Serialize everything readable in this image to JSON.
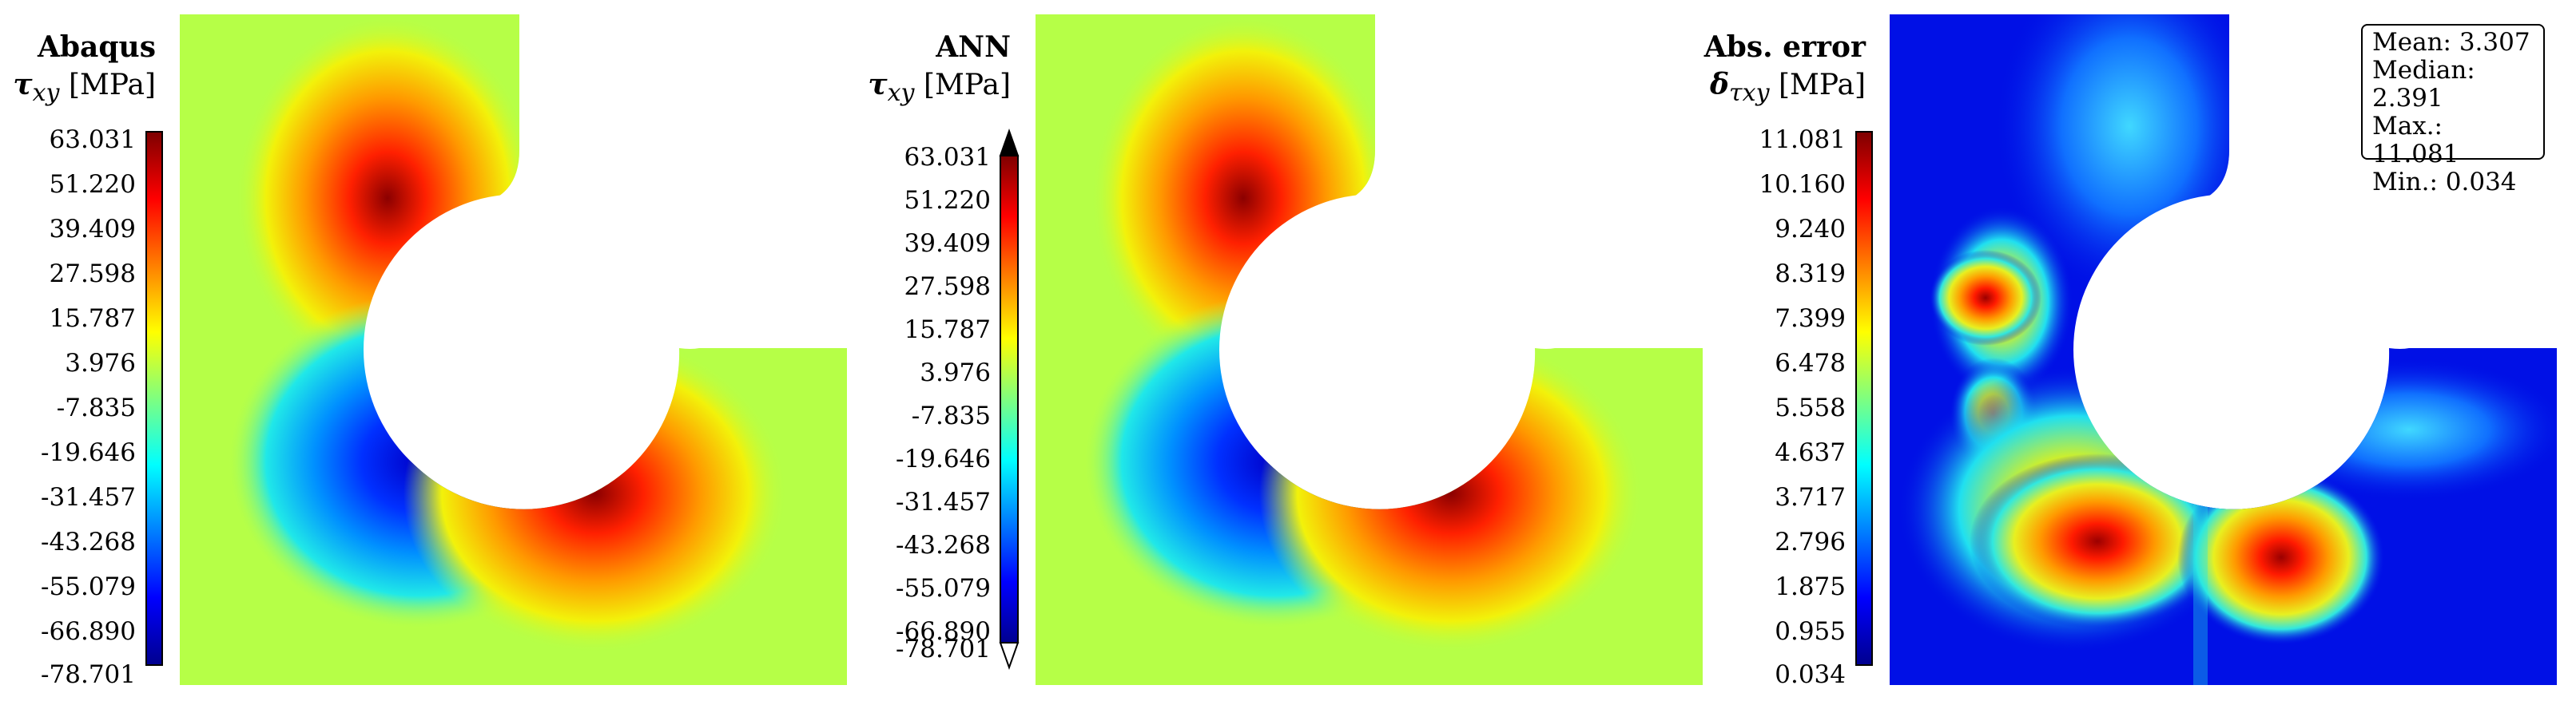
{
  "panels": [
    {
      "title": "Abaqus",
      "quantity": "τ",
      "subscript": "xy",
      "unit": "[MPa]",
      "ticks": [
        "63.031",
        "51.220",
        "39.409",
        "27.598",
        "15.787",
        "3.976",
        "-7.835",
        "-19.646",
        "-31.457",
        "-43.268",
        "-55.079",
        "-66.890",
        "-78.701"
      ],
      "colormap": "jet",
      "arrowed_colorbar": false
    },
    {
      "title": "ANN",
      "quantity": "τ",
      "subscript": "xy",
      "unit": "[MPa]",
      "ticks": [
        "63.031",
        "51.220",
        "39.409",
        "27.598",
        "15.787",
        "3.976",
        "-7.835",
        "-19.646",
        "-31.457",
        "-43.268",
        "-55.079",
        "-66.890",
        "-78.701"
      ],
      "colormap": "jet",
      "arrowed_colorbar": true
    },
    {
      "title": "Abs. error",
      "quantity": "δ",
      "subscript": "τxy",
      "unit": "[MPa]",
      "ticks": [
        "11.081",
        "10.160",
        "9.240",
        "8.319",
        "7.399",
        "6.478",
        "5.558",
        "4.637",
        "3.717",
        "2.796",
        "1.875",
        "0.955",
        "0.034"
      ],
      "colormap": "jet",
      "arrowed_colorbar": false
    }
  ],
  "stats": {
    "mean": "Mean: 3.307",
    "median": "Median: 2.391",
    "max": "Max.: 11.081",
    "min": "Min.: 0.034"
  },
  "colors": {
    "background_field": "#b6ff47",
    "error_background": "#0010e6"
  }
}
